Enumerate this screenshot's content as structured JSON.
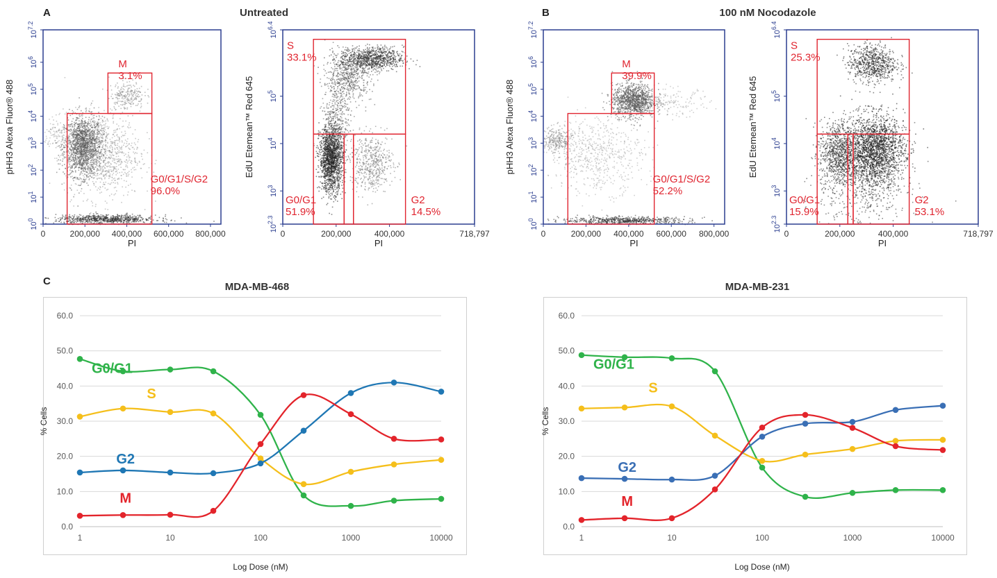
{
  "panels": {
    "a_label": "A",
    "b_label": "B",
    "c_label": "C",
    "a_title": "Untreated",
    "b_title": "100 nM Nocodazole"
  },
  "flow": {
    "axis_color": "#2a3d8f",
    "gate_color": "#e0242f",
    "plots": [
      {
        "id": "a-left",
        "xlabel": "PI",
        "ylabel": "pHH3 Alexa Fluor® 488",
        "xticks": [
          "0",
          "200,000",
          "400,000",
          "600,000",
          "800,000"
        ],
        "xtick_vals": [
          0,
          200000,
          400000,
          600000,
          800000
        ],
        "xrange": [
          0,
          850000
        ],
        "yticks": [
          "10^0",
          "10^1",
          "10^2",
          "10^3",
          "10^4",
          "10^5",
          "10^6",
          "10^7.2"
        ],
        "yrange": [
          0,
          7.2
        ],
        "gates": [
          {
            "name": "M",
            "pct": "3.1%",
            "x0": 310000,
            "x1": 520000,
            "y0": 4.1,
            "y1": 5.6
          },
          {
            "name": "G0/G1/S/G2",
            "pct": "96.0%",
            "x0": 115000,
            "x1": 520000,
            "y0": 0,
            "y1": 4.1
          }
        ]
      },
      {
        "id": "a-right",
        "xlabel": "PI",
        "ylabel": "EdU Etemean™ Red 645",
        "xticks": [
          "0",
          "200,000",
          "400,000",
          "718,797"
        ],
        "xtick_vals": [
          0,
          200000,
          400000,
          718797
        ],
        "xrange": [
          0,
          718797
        ],
        "yticks": [
          "10^2.3",
          "10^3",
          "10^4",
          "10^5",
          "10^6.4"
        ],
        "yrange": [
          2.3,
          6.4
        ],
        "gates": [
          {
            "name": "S",
            "pct": "33.1%",
            "x0": 115000,
            "x1": 460000,
            "y0": 4.2,
            "y1": 6.2
          },
          {
            "name": "G0/G1",
            "pct": "51.9%",
            "x0": 115000,
            "x1": 230000,
            "y0": 2.3,
            "y1": 4.2
          },
          {
            "name": "",
            "pct": "",
            "x0": 230000,
            "x1": 265000,
            "y0": 2.3,
            "y1": 4.2
          },
          {
            "name": "G2",
            "pct": "14.5%",
            "x0": 265000,
            "x1": 460000,
            "y0": 2.3,
            "y1": 4.2
          }
        ]
      },
      {
        "id": "b-left",
        "xlabel": "PI",
        "ylabel": "pHH3 Alexa Fluor® 488",
        "xticks": [
          "0",
          "200,000",
          "400,000",
          "600,000",
          "800,000"
        ],
        "xtick_vals": [
          0,
          200000,
          400000,
          600000,
          800000
        ],
        "xrange": [
          0,
          850000
        ],
        "yticks": [
          "10^0",
          "10^1",
          "10^2",
          "10^3",
          "10^4",
          "10^5",
          "10^6",
          "10^7.2"
        ],
        "yrange": [
          0,
          7.2
        ],
        "gates": [
          {
            "name": "M",
            "pct": "39.9%",
            "x0": 320000,
            "x1": 520000,
            "y0": 4.1,
            "y1": 5.6
          },
          {
            "name": "G0/G1/S/G2",
            "pct": "52.2%",
            "x0": 115000,
            "x1": 520000,
            "y0": 0,
            "y1": 4.1
          }
        ]
      },
      {
        "id": "b-right",
        "xlabel": "PI",
        "ylabel": "EdU Etemean™ Red 645",
        "xticks": [
          "0",
          "200,000",
          "400,000",
          "718,797"
        ],
        "xtick_vals": [
          0,
          200000,
          400000,
          718797
        ],
        "xrange": [
          0,
          718797
        ],
        "yticks": [
          "10^2.3",
          "10^3",
          "10^4",
          "10^5",
          "10^6.4"
        ],
        "yrange": [
          2.3,
          6.4
        ],
        "gates": [
          {
            "name": "S",
            "pct": "25.3%",
            "x0": 115000,
            "x1": 460000,
            "y0": 4.2,
            "y1": 6.2
          },
          {
            "name": "G0/G1",
            "pct": "15.9%",
            "x0": 115000,
            "x1": 230000,
            "y0": 2.3,
            "y1": 4.2
          },
          {
            "name": "",
            "pct": "",
            "x0": 230000,
            "x1": 250000,
            "y0": 2.3,
            "y1": 4.2
          },
          {
            "name": "G2",
            "pct": "53.1%",
            "x0": 250000,
            "x1": 460000,
            "y0": 2.3,
            "y1": 4.2
          }
        ]
      }
    ]
  },
  "chart_data": [
    {
      "type": "line",
      "title": "MDA-MB-468",
      "xlabel": "Log Dose (nM)",
      "ylabel": "% Cells",
      "x": [
        1,
        3,
        10,
        30,
        100,
        300,
        1000,
        3000,
        10000
      ],
      "xticks": [
        "1",
        "10",
        "100",
        "1000",
        "10000"
      ],
      "xtick_vals": [
        1,
        10,
        100,
        1000,
        10000
      ],
      "xscale": "log",
      "ylim": [
        0,
        60
      ],
      "yticks": [
        "0.0",
        "10.0",
        "20.0",
        "30.0",
        "40.0",
        "50.0",
        "60.0"
      ],
      "grid": true,
      "series": [
        {
          "name": "G0/G1",
          "color": "#2fb34a",
          "values": [
            47.7,
            44.2,
            44.7,
            44.2,
            31.8,
            8.9,
            5.9,
            7.4,
            7.9
          ]
        },
        {
          "name": "S",
          "color": "#f5bf1b",
          "values": [
            31.3,
            33.6,
            32.6,
            32.2,
            19.4,
            12.1,
            15.6,
            17.7,
            19.0
          ]
        },
        {
          "name": "G2",
          "color": "#1f77b4",
          "values": [
            15.4,
            16.0,
            15.4,
            15.2,
            18.0,
            27.3,
            38.0,
            41.0,
            38.4
          ]
        },
        {
          "name": "M",
          "color": "#e3242b",
          "values": [
            3.1,
            3.3,
            3.4,
            4.5,
            23.5,
            37.4,
            32.0,
            25.0,
            24.8
          ]
        }
      ]
    },
    {
      "type": "line",
      "title": "MDA-MB-231",
      "xlabel": "Log Dose (nM)",
      "ylabel": "% Cells",
      "x": [
        1,
        3,
        10,
        30,
        100,
        300,
        1000,
        3000,
        10000
      ],
      "xticks": [
        "1",
        "10",
        "100",
        "1000",
        "10000"
      ],
      "xtick_vals": [
        1,
        10,
        100,
        1000,
        10000
      ],
      "xscale": "log",
      "ylim": [
        0,
        60
      ],
      "yticks": [
        "0.0",
        "10.0",
        "20.0",
        "30.0",
        "40.0",
        "50.0",
        "60.0"
      ],
      "grid": true,
      "series": [
        {
          "name": "G0/G1",
          "color": "#2fb34a",
          "values": [
            48.8,
            48.2,
            47.9,
            44.2,
            16.8,
            8.5,
            9.6,
            10.4,
            10.4
          ]
        },
        {
          "name": "S",
          "color": "#f5bf1b",
          "values": [
            33.6,
            33.9,
            34.2,
            25.9,
            18.7,
            20.5,
            22.1,
            24.4,
            24.7
          ]
        },
        {
          "name": "G2",
          "color": "#3a6fb5",
          "values": [
            13.8,
            13.6,
            13.4,
            14.5,
            25.6,
            29.3,
            29.8,
            33.2,
            34.4
          ]
        },
        {
          "name": "M",
          "color": "#e3242b",
          "values": [
            1.9,
            2.4,
            2.4,
            10.6,
            28.2,
            31.8,
            28.1,
            22.9,
            21.8
          ]
        }
      ]
    }
  ]
}
